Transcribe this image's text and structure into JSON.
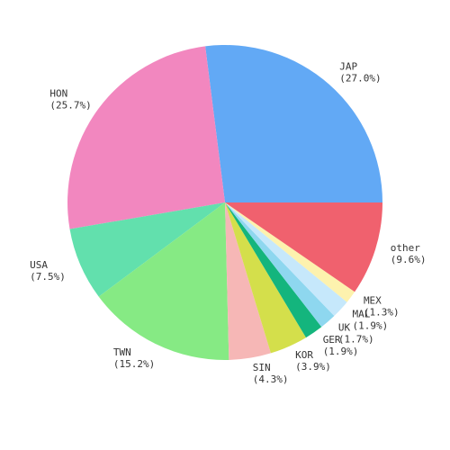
{
  "chart_data": {
    "type": "pie",
    "categories": [
      "JAP",
      "HON",
      "USA",
      "TWN",
      "SIN",
      "KOR",
      "GER",
      "UK",
      "MAL",
      "MEX",
      "other"
    ],
    "values": [
      27.0,
      25.7,
      7.5,
      15.2,
      4.3,
      3.9,
      1.9,
      1.7,
      1.9,
      1.3,
      9.6
    ],
    "value_labels": [
      "(27.0%)",
      "(25.7%)",
      "(7.5%)",
      "(15.2%)",
      "(4.3%)",
      "(3.9%)",
      "(1.9%)",
      "(1.7%)",
      "(1.9%)",
      "(1.3%)",
      "(9.6%)"
    ],
    "colors": [
      "#62a9f5",
      "#f287bf",
      "#62e0ad",
      "#86ea84",
      "#f6b7b6",
      "#d4df4b",
      "#14b57d",
      "#8ed7ef",
      "#c6e8fb",
      "#fdf2ae",
      "#f0616e"
    ]
  }
}
